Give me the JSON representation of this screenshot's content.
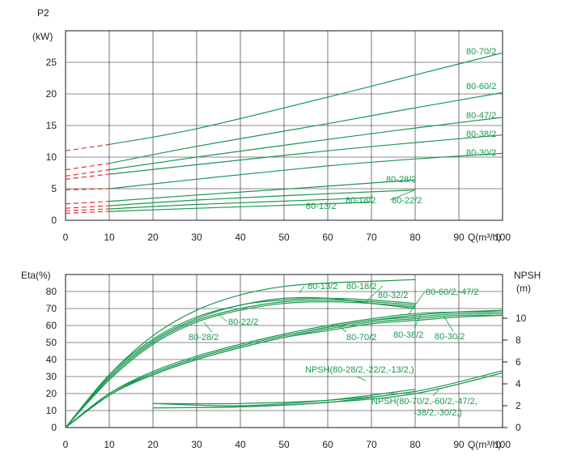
{
  "chart_data": [
    {
      "type": "line",
      "ylabel_line1": "P2",
      "ylabel_line2": "(kW)",
      "xlabel": "Q(m³/h)",
      "xlim": [
        0,
        100
      ],
      "ylim": [
        0,
        30
      ],
      "x_ticks": [
        0,
        10,
        20,
        30,
        40,
        50,
        60,
        70,
        80,
        90,
        100
      ],
      "y_ticks": [
        0,
        5,
        10,
        15,
        20,
        25
      ],
      "grid": true,
      "series": [
        {
          "name": "80-70/2",
          "x": [
            10,
            30,
            60,
            80,
            100
          ],
          "y": [
            12.0,
            14.5,
            19.5,
            23.0,
            26.5
          ],
          "dash_from_zero": 11.0
        },
        {
          "name": "80-60/2",
          "x": [
            10,
            30,
            60,
            80,
            100
          ],
          "y": [
            9.0,
            11.7,
            15.3,
            17.8,
            20.2
          ],
          "dash_from_zero": 8.0
        },
        {
          "name": "80-47/2",
          "x": [
            10,
            30,
            60,
            80,
            100
          ],
          "y": [
            8.0,
            10.0,
            12.8,
            14.6,
            16.3
          ],
          "dash_from_zero": 7.0
        },
        {
          "name": "80-38/2",
          "x": [
            10,
            30,
            60,
            80,
            100
          ],
          "y": [
            7.3,
            8.8,
            11.0,
            12.3,
            13.5
          ],
          "dash_from_zero": 6.5
        },
        {
          "name": "80-30/2",
          "x": [
            10,
            30,
            60,
            80,
            100
          ],
          "y": [
            5.0,
            6.5,
            8.6,
            9.7,
            10.6
          ],
          "dash_from_zero": 4.8
        },
        {
          "name": "80-28/2",
          "x": [
            10,
            30,
            60,
            80
          ],
          "y": [
            3.0,
            4.0,
            5.4,
            6.4
          ],
          "dash_from_zero": 2.6
        },
        {
          "name": "80-22/2",
          "x": [
            10,
            30,
            60,
            80
          ],
          "y": [
            2.3,
            3.2,
            4.2,
            4.8
          ],
          "dash_from_zero": 1.9
        },
        {
          "name": "80-18/2",
          "x": [
            10,
            30,
            60,
            70
          ],
          "y": [
            1.8,
            2.5,
            3.3,
            3.6
          ],
          "dash_from_zero": 1.5
        },
        {
          "name": "80-13/2",
          "x": [
            10,
            30,
            60,
            70
          ],
          "y": [
            1.4,
            1.9,
            2.6,
            2.9
          ],
          "dash_from_zero": 1.1
        }
      ]
    },
    {
      "type": "line",
      "ylabel": "Eta(%)",
      "y2label_line1": "NPSH",
      "y2label_line2": "(m)",
      "xlabel": "Q(m³/h)",
      "xlim": [
        0,
        100
      ],
      "ylim": [
        0,
        90
      ],
      "y2lim": [
        0,
        14
      ],
      "x_ticks": [
        0,
        10,
        20,
        30,
        40,
        50,
        60,
        70,
        80,
        90,
        100
      ],
      "y_ticks": [
        0,
        10,
        20,
        30,
        40,
        50,
        60,
        70,
        80
      ],
      "y2_ticks": [
        0,
        2,
        4,
        6,
        8,
        10
      ],
      "grid": true,
      "eta_series": [
        {
          "name": "80-13/2",
          "x": [
            0,
            10,
            20,
            30,
            40,
            50,
            60,
            70,
            80
          ],
          "y": [
            0,
            31,
            52,
            65,
            72,
            76,
            76,
            73,
            70
          ]
        },
        {
          "name": "80-18/2",
          "x": [
            0,
            10,
            20,
            30,
            40,
            50,
            60,
            70,
            80
          ],
          "y": [
            0,
            30,
            51,
            64,
            72,
            75,
            76,
            75,
            73
          ]
        },
        {
          "name": "80-32/2",
          "x": [
            0,
            10,
            20,
            30,
            40,
            50,
            60,
            70,
            80
          ],
          "y": [
            0,
            31,
            54,
            69,
            78,
            83,
            85,
            86,
            87
          ]
        },
        {
          "name": "80-22/2",
          "x": [
            0,
            10,
            20,
            30,
            40,
            50,
            60,
            70,
            80
          ],
          "y": [
            0,
            29,
            50,
            63,
            70,
            74,
            75,
            74,
            72
          ]
        },
        {
          "name": "80-28/2",
          "x": [
            0,
            10,
            20,
            30,
            40,
            50,
            60,
            70,
            80
          ],
          "y": [
            0,
            28,
            49,
            62,
            69,
            73,
            74,
            73,
            71
          ]
        },
        {
          "name": "80-70/2",
          "x": [
            0,
            10,
            20,
            30,
            40,
            50,
            60,
            70,
            80,
            90,
            100
          ],
          "y": [
            0,
            19,
            31,
            40,
            47,
            53,
            57,
            61,
            63,
            65,
            66
          ]
        },
        {
          "name": "80-60/2",
          "x": [
            0,
            10,
            20,
            30,
            40,
            50,
            60,
            70,
            80,
            90,
            100
          ],
          "y": [
            0,
            20,
            32,
            41,
            48,
            54,
            59,
            63,
            66,
            68,
            69
          ]
        },
        {
          "name": "80-47/2",
          "x": [
            0,
            10,
            20,
            30,
            40,
            50,
            60,
            70,
            80,
            90,
            100
          ],
          "y": [
            0,
            20,
            33,
            42,
            49,
            55,
            60,
            64,
            67,
            68,
            68
          ]
        },
        {
          "name": "80-38/2",
          "x": [
            0,
            10,
            20,
            30,
            40,
            50,
            60,
            70,
            80,
            90,
            100
          ],
          "y": [
            0,
            19,
            32,
            41,
            48,
            54,
            59,
            63,
            65,
            67,
            67
          ]
        },
        {
          "name": "80-30/2",
          "x": [
            0,
            10,
            20,
            30,
            40,
            50,
            60,
            70,
            80,
            90,
            100
          ],
          "y": [
            0,
            19,
            31,
            40,
            47,
            53,
            58,
            62,
            64,
            66,
            66
          ]
        }
      ],
      "npsh_series": [
        {
          "name": "NPSH(80-28/2,-22/2,-13/2,)",
          "x": [
            20,
            40,
            60,
            80
          ],
          "y": [
            2.2,
            2.0,
            2.5,
            3.5
          ]
        },
        {
          "name": "NPSH(80-28/2,-22/2,-13/2,)",
          "x": [
            20,
            40,
            60,
            80
          ],
          "y": [
            1.8,
            1.9,
            2.3,
            3.3
          ]
        },
        {
          "name": "NPSH(80-70/2,-60/2,-47/2,-38/2,-30/2,)",
          "x": [
            20,
            40,
            60,
            80,
            100
          ],
          "y": [
            2.2,
            2.2,
            2.5,
            3.3,
            5.2
          ]
        },
        {
          "name": "NPSH(80-70/2,-60/2,-47/2,-38/2,-30/2,)",
          "x": [
            20,
            40,
            60,
            80,
            100
          ],
          "y": [
            1.8,
            1.9,
            2.3,
            3.1,
            5.0
          ]
        }
      ],
      "labels": {
        "npsh_small": "NPSH(80-28/2,-22/2,-13/2,)",
        "npsh_large_line1": "NPSH(80-70/2,-60/2,-47/2,",
        "npsh_large_line2": "-38/2,-30/2,)",
        "eta_top_group": "80-60/2,-47/2"
      },
      "colors": {
        "curve": "#1a9850",
        "extrapolated": "#e0303a"
      }
    }
  ]
}
